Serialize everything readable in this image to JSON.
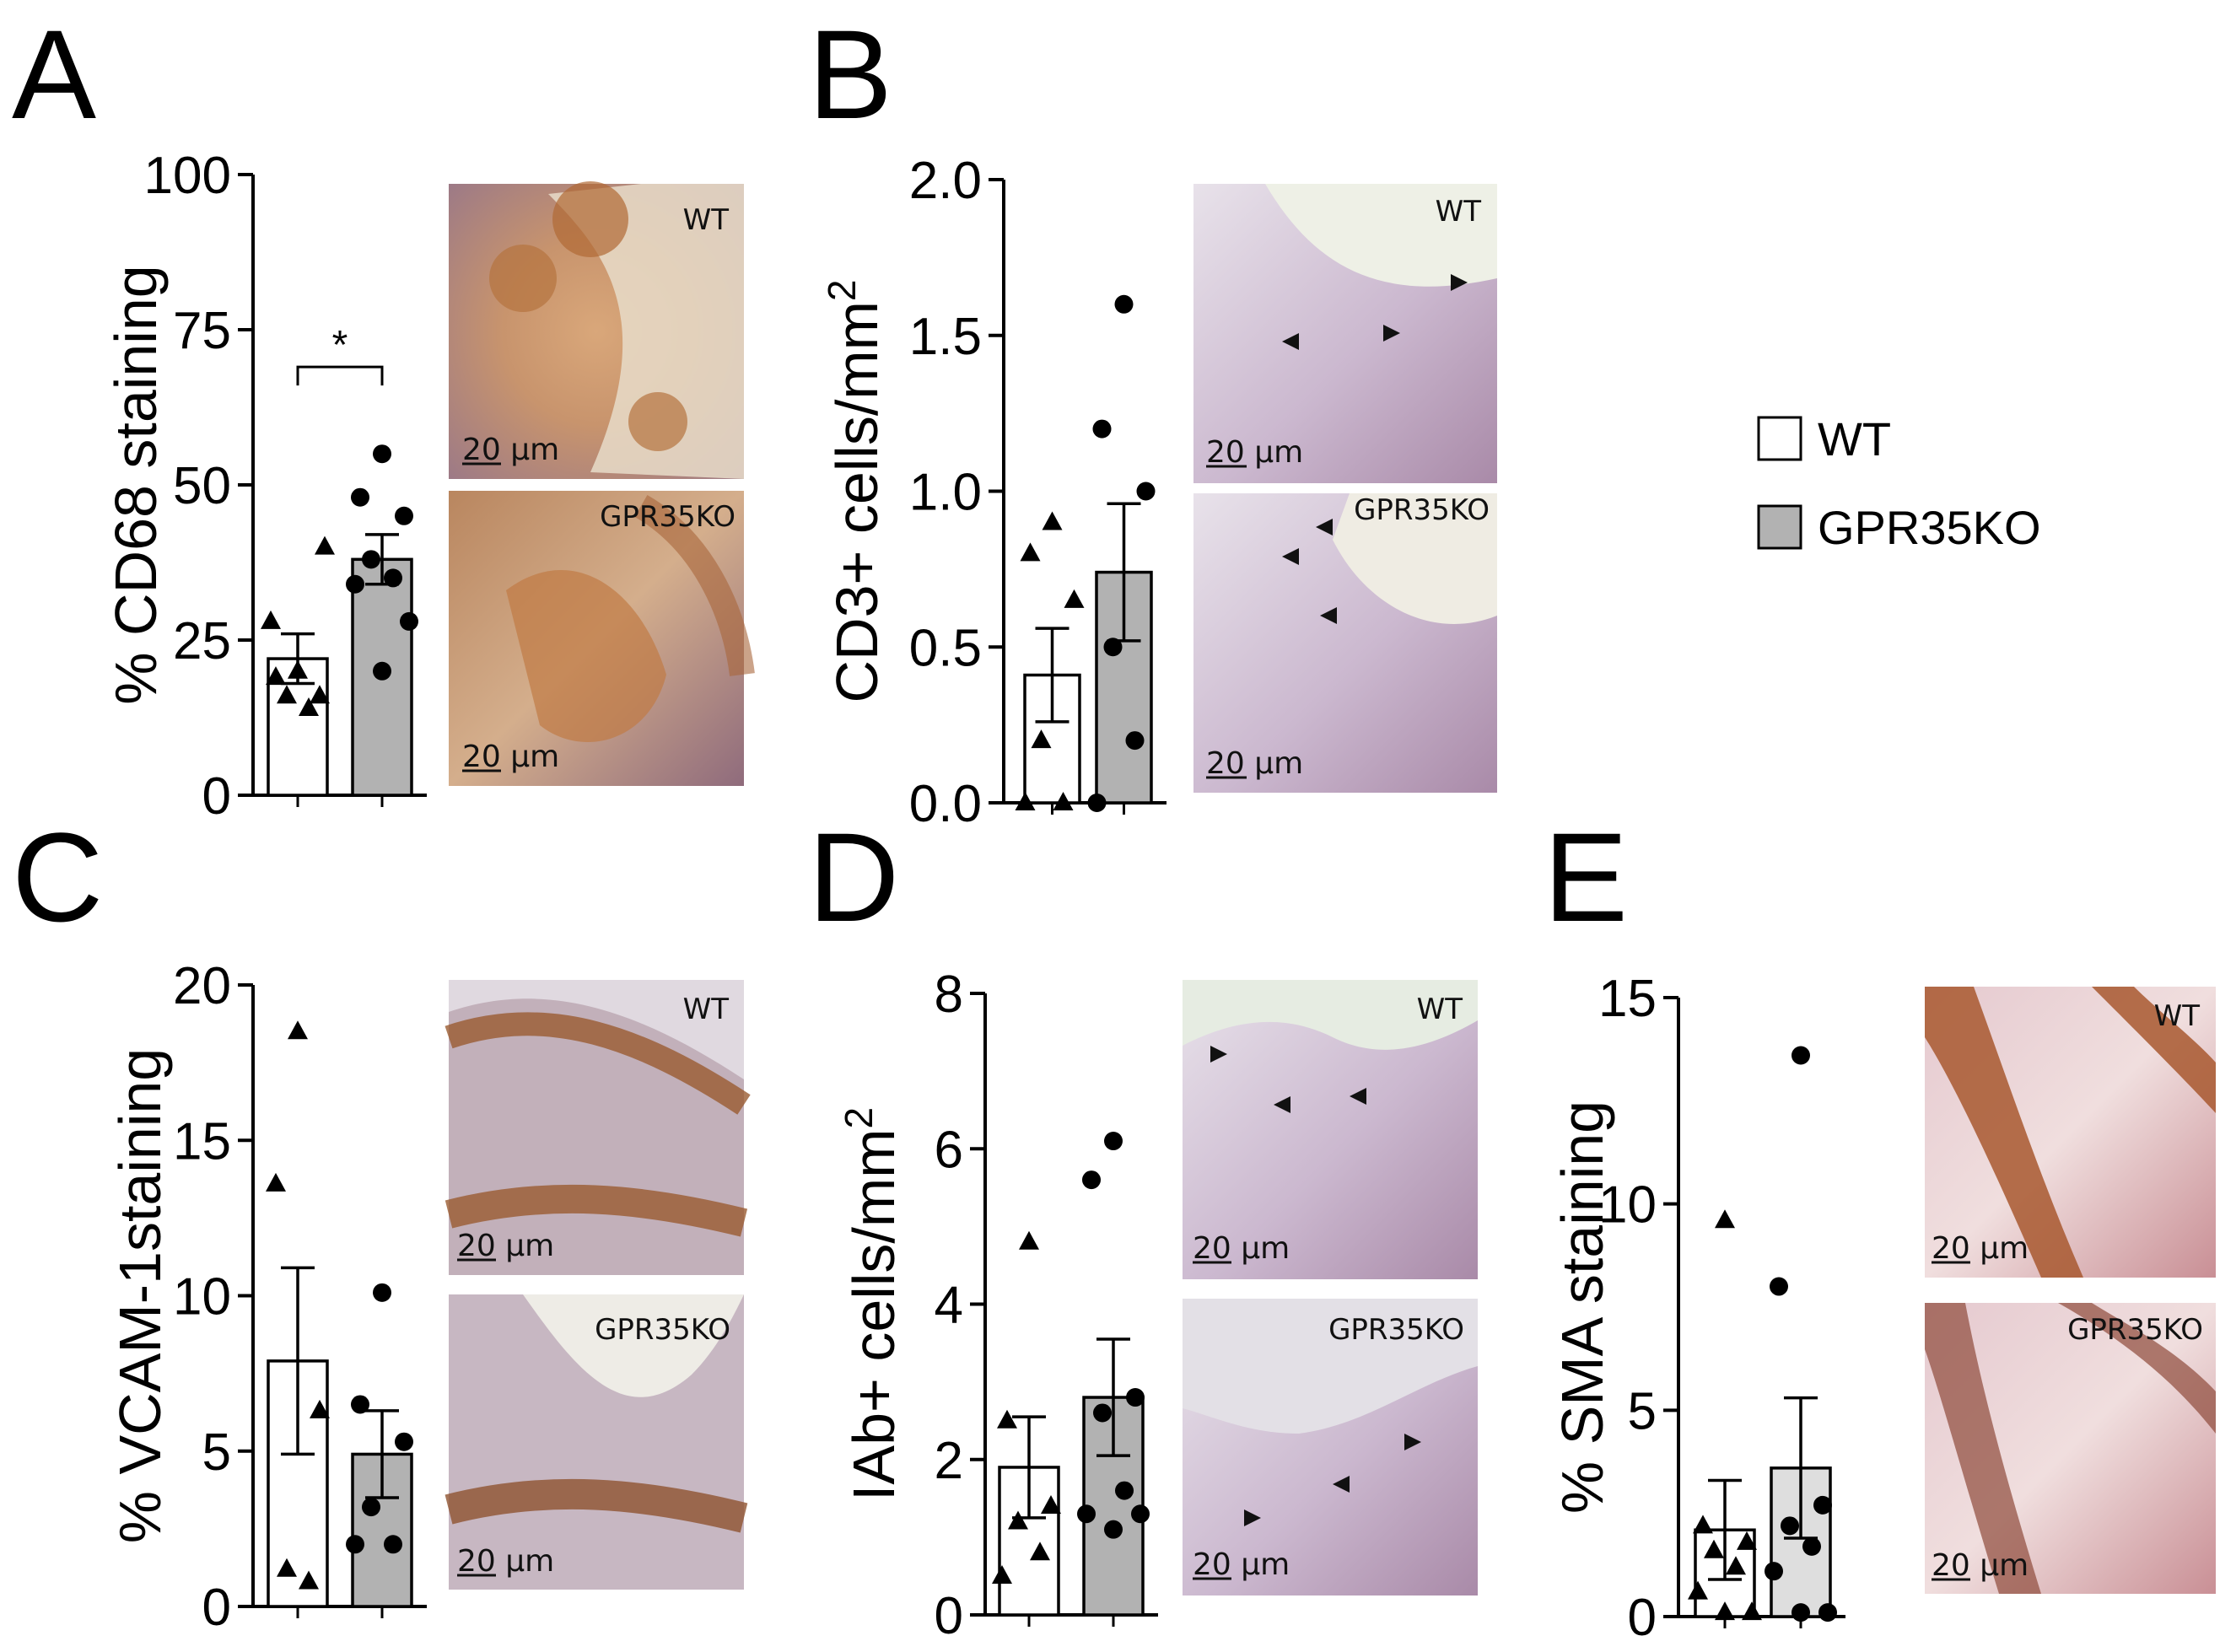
{
  "legend": {
    "items": [
      {
        "label": "WT",
        "color": "#ffffff"
      },
      {
        "label": "GPR35KO",
        "color": "#b2b2b2"
      }
    ],
    "placement": "right"
  },
  "micrograph_labels": {
    "wt": "WT",
    "ko": "GPR35KO",
    "scale": "20 µm"
  },
  "chart_data": [
    {
      "type": "bar",
      "panel": "A",
      "categories": [
        "WT",
        "GPR35KO"
      ],
      "values": [
        22,
        38
      ],
      "errors": [
        4,
        4
      ],
      "points": [
        [
          20,
          19,
          16,
          16,
          14,
          28,
          40
        ],
        [
          55,
          48,
          45,
          38,
          35,
          34,
          28,
          20
        ]
      ],
      "ylabel": "% CD68  staining",
      "ylim": [
        0,
        100
      ],
      "yticks": [
        "0",
        "25",
        "50",
        "75",
        "100"
      ],
      "significance": "*",
      "bar_colors": [
        "#ffffff",
        "#b2b2b2"
      ]
    },
    {
      "type": "bar",
      "panel": "B",
      "categories": [
        "WT",
        "GPR35KO"
      ],
      "values": [
        0.41,
        0.74
      ],
      "errors": [
        0.15,
        0.22
      ],
      "points": [
        [
          0.9,
          0.8,
          0.65,
          0.2,
          0.0,
          0.0
        ],
        [
          1.6,
          1.2,
          1.0,
          0.5,
          0.2,
          0.0
        ]
      ],
      "ylabel": "CD3+ cells/mm",
      "ylabel_sup": "2",
      "ylim": [
        0,
        2.0
      ],
      "yticks": [
        "0.0",
        "0.5",
        "1.0",
        "1.5",
        "2.0"
      ],
      "bar_colors": [
        "#ffffff",
        "#b2b2b2"
      ]
    },
    {
      "type": "bar",
      "panel": "C",
      "categories": [
        "WT",
        "GPR35KO"
      ],
      "values": [
        7.9,
        4.9
      ],
      "errors": [
        3.0,
        1.4
      ],
      "points": [
        [
          18.5,
          13.6,
          6.3,
          1.2,
          0.8
        ],
        [
          10.1,
          6.5,
          5.3,
          3.2,
          2.0,
          2.0
        ]
      ],
      "ylabel": "% VCAM-1staining",
      "ylim": [
        0,
        20
      ],
      "yticks": [
        "0",
        "5",
        "10",
        "15",
        "20"
      ],
      "bar_colors": [
        "#ffffff",
        "#b2b2b2"
      ]
    },
    {
      "type": "bar",
      "panel": "D",
      "categories": [
        "WT",
        "GPR35KO"
      ],
      "values": [
        1.9,
        2.8
      ],
      "errors": [
        0.65,
        0.75
      ],
      "points": [
        [
          4.8,
          2.5,
          1.4,
          1.2,
          0.8,
          0.5
        ],
        [
          6.1,
          5.6,
          2.8,
          2.6,
          1.6,
          1.3,
          1.3,
          1.1
        ]
      ],
      "ylabel": "IAb+ cells/mm",
      "ylabel_sup": "2",
      "ylim": [
        0,
        8
      ],
      "yticks": [
        "0",
        "2",
        "4",
        "6",
        "8"
      ],
      "bar_colors": [
        "#ffffff",
        "#b2b2b2"
      ]
    },
    {
      "type": "bar",
      "panel": "E",
      "categories": [
        "WT",
        "GPR35KO"
      ],
      "values": [
        2.1,
        3.6
      ],
      "errors": [
        1.2,
        1.7
      ],
      "points": [
        [
          9.6,
          2.2,
          1.8,
          1.6,
          1.2,
          0.6,
          0.1,
          0.1
        ],
        [
          13.6,
          8.0,
          2.7,
          2.2,
          1.7,
          1.1,
          0.1,
          0.1
        ]
      ],
      "ylabel": "% SMA staining",
      "ylim": [
        0,
        15
      ],
      "yticks": [
        "0",
        "5",
        "10",
        "15"
      ],
      "bar_colors": [
        "#ffffff",
        "#dedede"
      ]
    }
  ]
}
